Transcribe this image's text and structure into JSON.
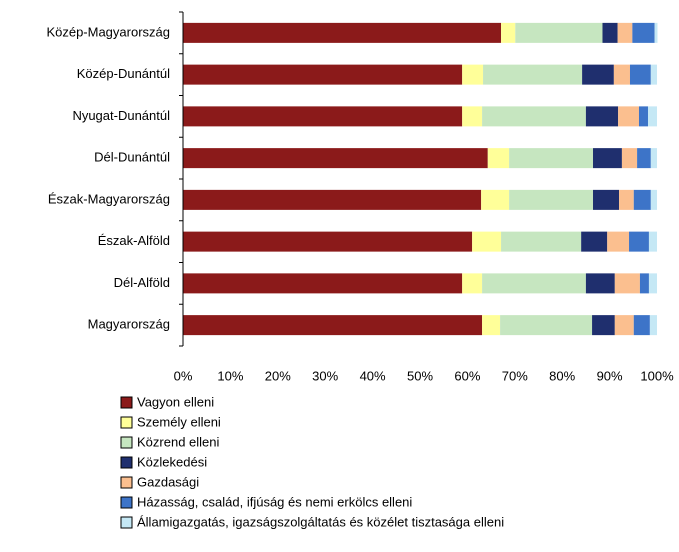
{
  "chart_data": {
    "type": "stacked-bar-horizontal",
    "categories": [
      "Közép-Magyarország",
      "Közép-Dunántúl",
      "Nyugat-Dunántúl",
      "Dél-Dunántúl",
      "Észak-Magyarország",
      "Észak-Alföld",
      "Dél-Alföld",
      "Magyarország"
    ],
    "series": [
      {
        "name": "Vagyon elleni",
        "color": "#8b1a1a",
        "values": [
          67.1,
          58.9,
          58.9,
          64.3,
          62.9,
          61.0,
          58.9,
          63.1
        ]
      },
      {
        "name": "Személy elleni",
        "color": "#ffff99",
        "values": [
          3.0,
          4.4,
          4.2,
          4.5,
          5.9,
          6.1,
          4.2,
          3.8
        ]
      },
      {
        "name": "Közrend elleni",
        "color": "#c6e6c0",
        "values": [
          18.4,
          20.9,
          21.9,
          17.7,
          17.7,
          16.9,
          21.9,
          19.4
        ]
      },
      {
        "name": "Közlekedési",
        "color": "#1f2f6e",
        "values": [
          3.2,
          6.7,
          6.8,
          6.1,
          5.5,
          5.5,
          6.1,
          4.8
        ]
      },
      {
        "name": "Gazdasági",
        "color": "#fbbf8f",
        "values": [
          3.1,
          3.4,
          4.4,
          3.2,
          3.1,
          4.6,
          5.3,
          4.0
        ]
      },
      {
        "name": "Házasság, család, ifjúság és nemi erkölcs elleni",
        "color": "#3d74c8",
        "values": [
          4.7,
          4.4,
          1.9,
          2.9,
          3.6,
          4.2,
          1.9,
          3.4
        ]
      },
      {
        "name": "Államigazgatás, igazságszolgáltatás és közélet tisztasága elleni",
        "color": "#c5e8f5",
        "values": [
          0.6,
          1.3,
          1.9,
          1.3,
          1.3,
          1.7,
          1.7,
          1.5
        ]
      }
    ],
    "xlim": [
      0,
      100
    ],
    "xticks": [
      {
        "value": 0,
        "label": "0%"
      },
      {
        "value": 10,
        "label": "10%"
      },
      {
        "value": 20,
        "label": "20%"
      },
      {
        "value": 30,
        "label": "30%"
      },
      {
        "value": 40,
        "label": "40%"
      },
      {
        "value": 50,
        "label": "50%"
      },
      {
        "value": 60,
        "label": "60%"
      },
      {
        "value": 70,
        "label": "70%"
      },
      {
        "value": 80,
        "label": "80%"
      },
      {
        "value": 90,
        "label": "90%"
      },
      {
        "value": 100,
        "label": "100%"
      }
    ],
    "grid": false,
    "legend": "bottom"
  }
}
